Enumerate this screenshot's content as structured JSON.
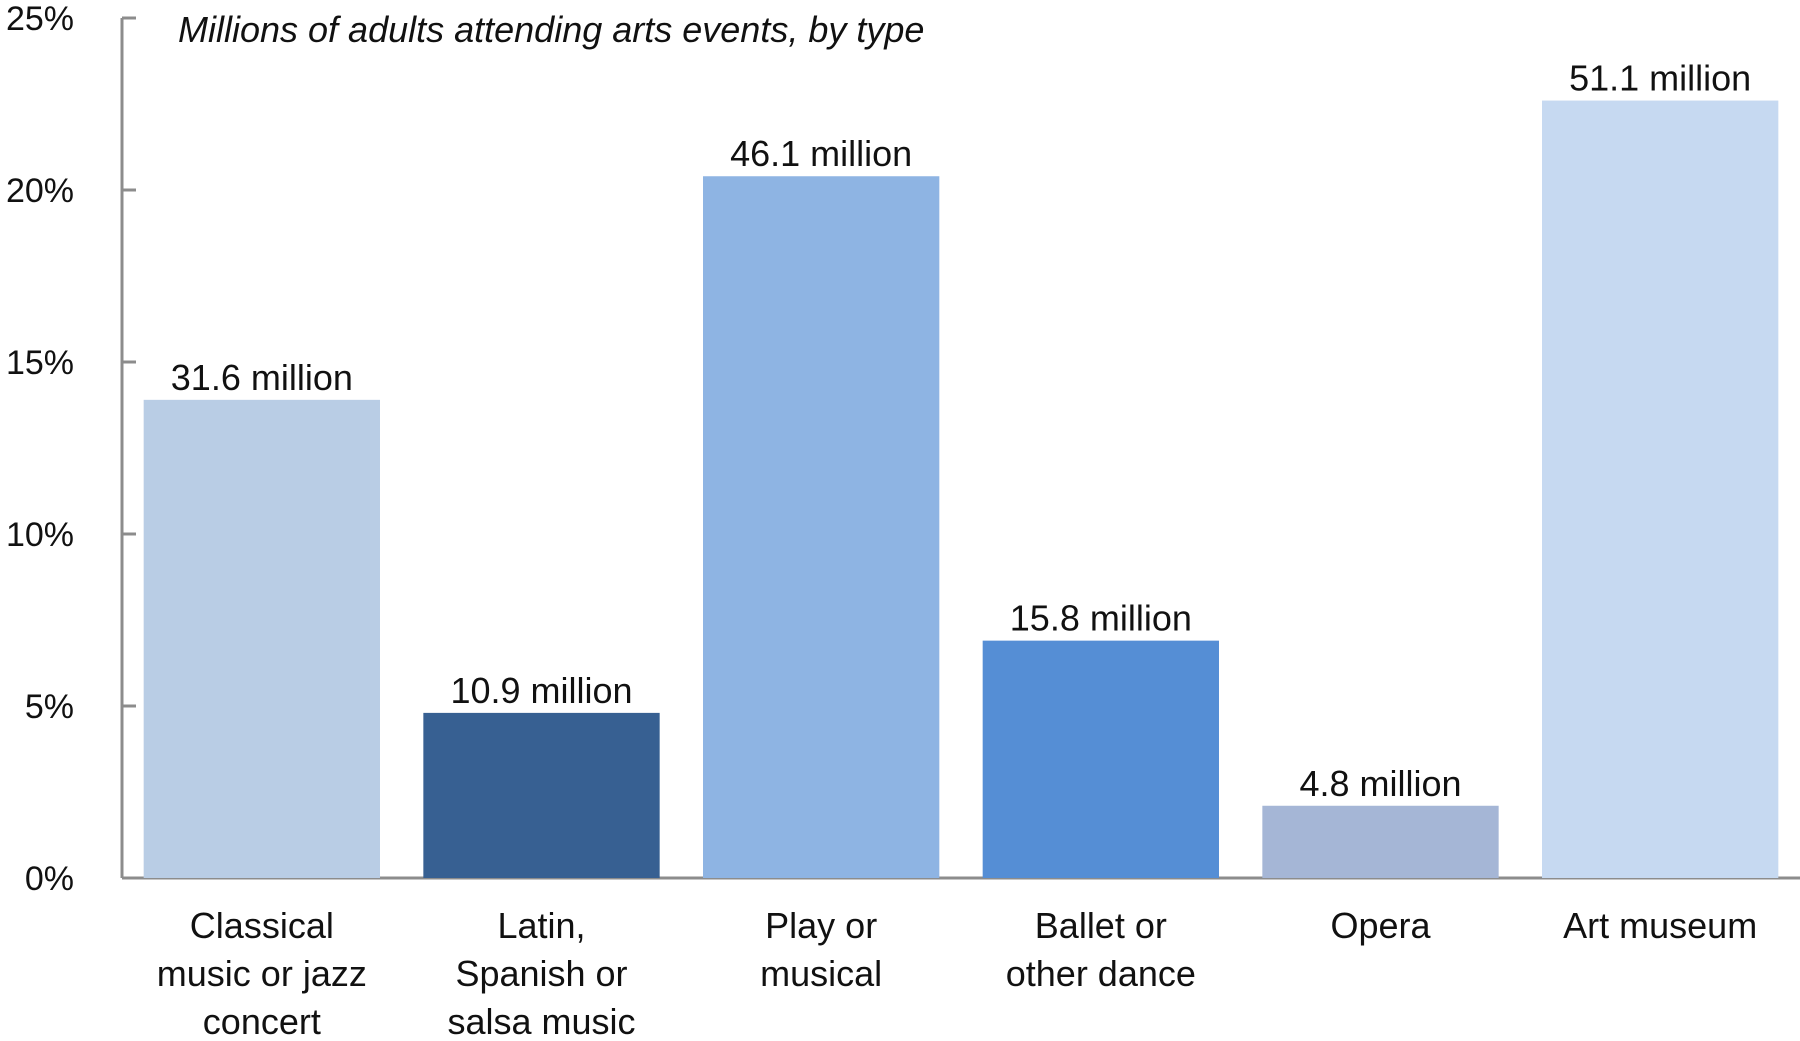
{
  "chart_data": {
    "type": "bar",
    "title": "Millions of adults attending arts events, by type",
    "categories": [
      [
        "Classical",
        "music or jazz",
        "concert"
      ],
      [
        "Latin,",
        "Spanish or",
        "salsa music"
      ],
      [
        "Play or",
        "musical"
      ],
      [
        "Ballet or",
        "other dance"
      ],
      [
        "Opera"
      ],
      [
        "Art museum"
      ]
    ],
    "values": [
      13.9,
      4.8,
      20.4,
      6.9,
      2.1,
      22.6
    ],
    "data_labels": [
      "31.6 million",
      "10.9 million",
      "46.1 million",
      "15.8 million",
      "4.8 million",
      "51.1 million"
    ],
    "bar_colors": [
      "#b9cde5",
      "#376092",
      "#8eb4e3",
      "#558ed5",
      "#a5b6d6",
      "#c6d9f1"
    ],
    "ylim": [
      0,
      25
    ],
    "yticks": [
      0,
      5,
      10,
      15,
      20,
      25
    ],
    "ytick_labels": [
      "0%",
      "5%",
      "10%",
      "15%",
      "20%",
      "25%"
    ],
    "grid": false,
    "legend": "none"
  }
}
